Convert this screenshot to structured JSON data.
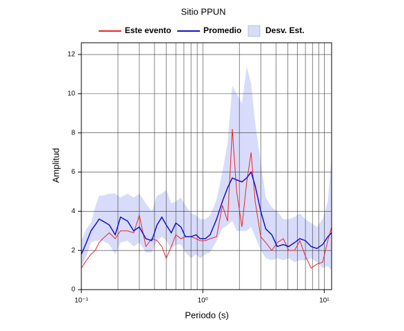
{
  "chart_data": {
    "type": "line",
    "title": "Sitio PPUN",
    "xlabel": "Periodo (s)",
    "ylabel": "Amplitud",
    "log_x": true,
    "grid": true,
    "xlim": [
      0.1,
      11.5
    ],
    "ylim": [
      0,
      12.6
    ],
    "xticks": [
      {
        "value": 0.1,
        "label": "10⁻¹"
      },
      {
        "value": 1,
        "label": "10⁰"
      },
      {
        "value": 10,
        "label": "10¹"
      }
    ],
    "xgrid": [
      0.2,
      0.3,
      0.4,
      0.5,
      0.6,
      0.7,
      0.8,
      0.9,
      2,
      3,
      4,
      5,
      6,
      7,
      8,
      9
    ],
    "yticks": [
      0,
      2,
      4,
      6,
      8,
      10,
      12
    ],
    "x": [
      0.1,
      0.11,
      0.12,
      0.13,
      0.14,
      0.15,
      0.17,
      0.19,
      0.21,
      0.24,
      0.27,
      0.3,
      0.34,
      0.38,
      0.42,
      0.46,
      0.5,
      0.55,
      0.6,
      0.66,
      0.72,
      0.8,
      0.88,
      0.95,
      1.05,
      1.15,
      1.3,
      1.45,
      1.6,
      1.75,
      1.9,
      2.1,
      2.3,
      2.5,
      2.7,
      3.0,
      3.3,
      3.7,
      4.1,
      4.6,
      5.1,
      5.7,
      6.3,
      7.0,
      7.8,
      8.7,
      9.7,
      10.7,
      11.5
    ],
    "band": {
      "name": "Desv. Est.",
      "color": "#d8dcfa",
      "upper": [
        2.5,
        3.1,
        3.4,
        4.2,
        4.8,
        4.8,
        4.9,
        4.9,
        4.7,
        4.9,
        4.7,
        4.9,
        4.4,
        4.0,
        4.8,
        4.9,
        5.1,
        4.4,
        4.5,
        4.7,
        4.3,
        3.9,
        3.8,
        3.6,
        3.6,
        3.8,
        4.6,
        6.0,
        7.5,
        10.4,
        10.0,
        9.5,
        11.4,
        10.5,
        8.5,
        6.5,
        4.7,
        4.2,
        4.0,
        3.6,
        3.6,
        3.7,
        3.9,
        3.6,
        3.4,
        3.2,
        3.6,
        4.5,
        6.8
      ],
      "lower": [
        1.2,
        1.7,
        2.4,
        2.5,
        2.5,
        2.5,
        2.3,
        1.8,
        2.4,
        2.5,
        2.2,
        2.4,
        1.9,
        1.9,
        2.5,
        2.7,
        2.5,
        2.1,
        2.3,
        2.3,
        1.9,
        1.6,
        1.8,
        1.6,
        1.8,
        1.9,
        2.5,
        3.1,
        3.3,
        3.5,
        3.0,
        3.0,
        3.0,
        3.2,
        2.7,
        2.0,
        1.6,
        1.5,
        1.6,
        1.5,
        1.6,
        1.4,
        1.5,
        1.5,
        1.6,
        1.4,
        1.1,
        1.2,
        1.0
      ]
    },
    "series": [
      {
        "name": "Este evento",
        "color": "#ee2222",
        "values": [
          1.1,
          1.5,
          1.8,
          2.0,
          2.4,
          2.6,
          2.9,
          2.6,
          3.0,
          3.0,
          2.9,
          3.8,
          2.2,
          2.6,
          2.5,
          2.2,
          1.6,
          2.2,
          2.8,
          2.6,
          2.7,
          2.7,
          2.6,
          2.5,
          2.5,
          2.6,
          2.7,
          4.3,
          3.5,
          8.2,
          5.0,
          3.2,
          5.5,
          7.0,
          4.5,
          2.7,
          2.4,
          2.0,
          2.4,
          2.6,
          2.0,
          2.0,
          2.5,
          1.7,
          1.1,
          1.3,
          1.4,
          2.5,
          3.2
        ]
      },
      {
        "name": "Promedio",
        "color": "#1111cc",
        "values": [
          1.8,
          2.4,
          3.0,
          3.3,
          3.6,
          3.5,
          3.3,
          2.8,
          3.7,
          3.5,
          3.0,
          3.2,
          2.6,
          2.5,
          3.3,
          3.7,
          3.3,
          2.9,
          3.4,
          3.2,
          2.7,
          2.7,
          2.8,
          2.6,
          2.6,
          2.8,
          3.6,
          4.5,
          5.2,
          5.7,
          5.6,
          5.5,
          5.7,
          6.0,
          5.3,
          4.0,
          3.1,
          2.8,
          2.2,
          2.3,
          2.2,
          2.4,
          2.6,
          2.5,
          2.2,
          2.1,
          2.3,
          2.7,
          2.9
        ]
      }
    ]
  }
}
